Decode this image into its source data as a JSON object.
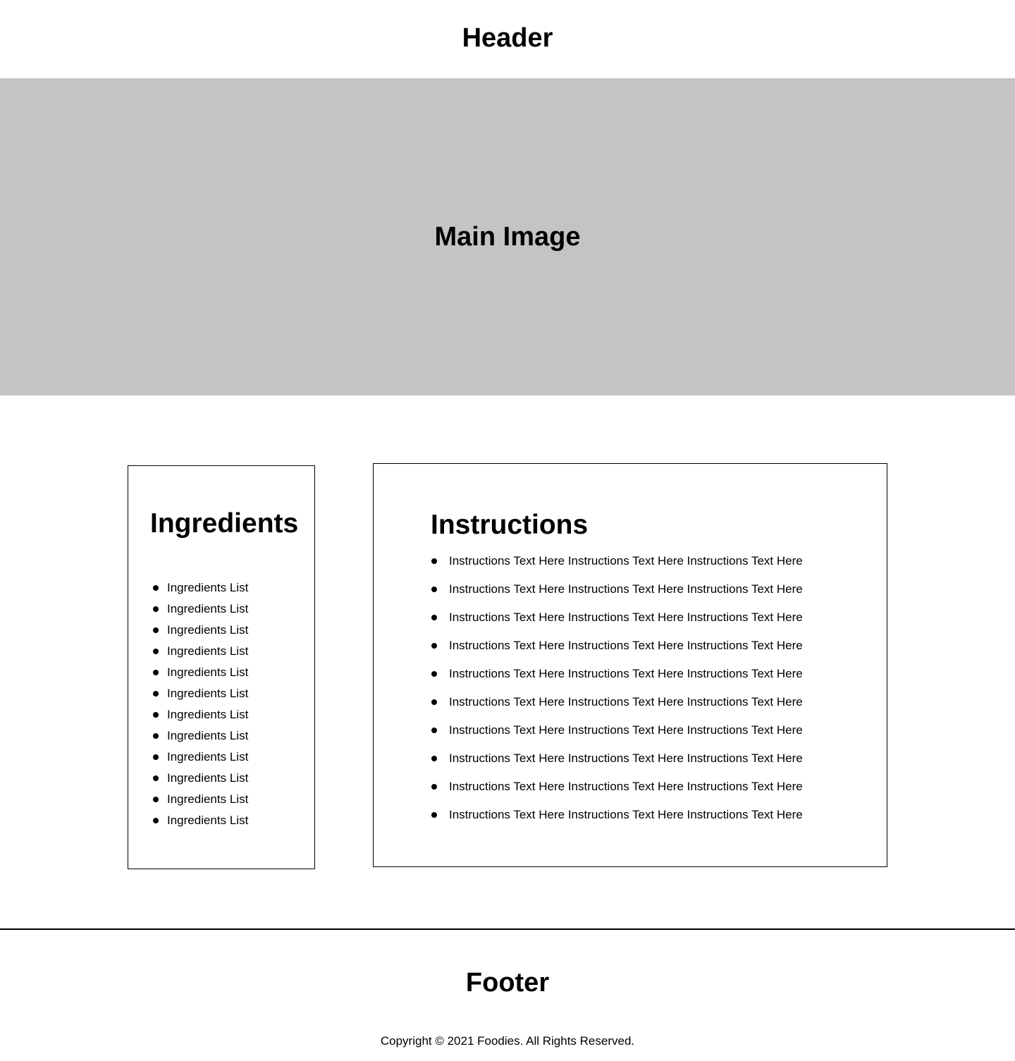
{
  "header": {
    "title": "Header"
  },
  "hero": {
    "placeholder_label": "Main Image",
    "background_color": "#c4c4c4"
  },
  "ingredients": {
    "title": "Ingredients",
    "items": [
      "Ingredients List",
      "Ingredients List",
      "Ingredients List",
      "Ingredients List",
      "Ingredients List",
      "Ingredients List",
      "Ingredients List",
      "Ingredients List",
      "Ingredients List",
      "Ingredients List",
      "Ingredients List",
      "Ingredients List"
    ]
  },
  "instructions": {
    "title": "Instructions",
    "items": [
      "Instructions Text Here Instructions Text Here  Instructions Text Here",
      "Instructions Text Here Instructions Text Here  Instructions Text Here",
      "Instructions Text Here Instructions Text Here  Instructions Text Here",
      "Instructions Text Here Instructions Text Here  Instructions Text Here",
      "Instructions Text Here Instructions Text Here  Instructions Text Here",
      "Instructions Text Here Instructions Text Here  Instructions Text Here",
      "Instructions Text Here Instructions Text Here  Instructions Text Here",
      "Instructions Text Here Instructions Text Here  Instructions Text Here",
      "Instructions Text Here Instructions Text Here  Instructions Text Here",
      "Instructions Text Here Instructions Text Here  Instructions Text Here"
    ]
  },
  "footer": {
    "title": "Footer",
    "copyright": "Copyright © 2021 Foodies. All Rights Reserved."
  }
}
